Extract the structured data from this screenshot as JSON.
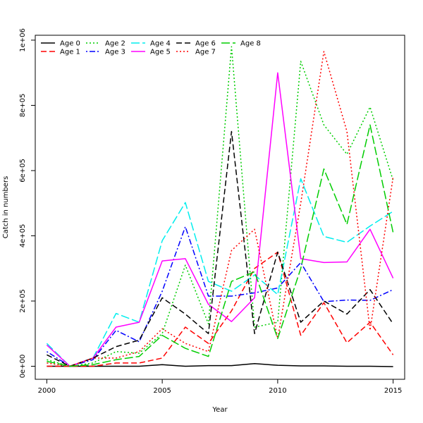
{
  "chart_data": {
    "type": "line",
    "title": "",
    "xlabel": "Year",
    "ylabel": "Catch in numbers",
    "xlim": [
      1999.5,
      2015.5
    ],
    "ylim": [
      -40000,
      1015000
    ],
    "x_ticks": [
      2000,
      2005,
      2010,
      2015
    ],
    "x_tick_labels": [
      "2000",
      "2005",
      "2010",
      "2015"
    ],
    "y_ticks": [
      0,
      200000,
      400000,
      600000,
      800000,
      1000000
    ],
    "y_tick_labels": [
      "0e+00",
      "2e+05",
      "4e+05",
      "6e+05",
      "8e+05",
      "1e+06"
    ],
    "grid": false,
    "legend_position": "top-left",
    "x": [
      2000,
      2001,
      2002,
      2003,
      2004,
      2005,
      2006,
      2007,
      2008,
      2009,
      2010,
      2011,
      2012,
      2013,
      2014,
      2015
    ],
    "series": [
      {
        "name": "Age 0",
        "color": "#000000",
        "dash": "solid",
        "values": [
          0,
          0,
          0,
          0,
          0,
          5000,
          0,
          2000,
          2000,
          8000,
          3000,
          1000,
          1000,
          0,
          0,
          -1000
        ]
      },
      {
        "name": "Age 1",
        "color": "#ff0000",
        "dash": "dashed",
        "values": [
          0,
          0,
          0,
          10000,
          10000,
          25000,
          120000,
          70000,
          170000,
          300000,
          350000,
          95000,
          195000,
          72000,
          135000,
          35000
        ]
      },
      {
        "name": "Age 2",
        "color": "#00cd00",
        "dash": "dotted",
        "values": [
          20000,
          0,
          10000,
          45000,
          40000,
          100000,
          310000,
          130000,
          980000,
          120000,
          135000,
          935000,
          740000,
          650000,
          795000,
          570000
        ]
      },
      {
        "name": "Age 3",
        "color": "#0000ff",
        "dash": "dotdash",
        "values": [
          45000,
          0,
          20000,
          110000,
          75000,
          230000,
          428000,
          215000,
          215000,
          225000,
          240000,
          318000,
          198000,
          203000,
          202000,
          235000
        ]
      },
      {
        "name": "Age 4",
        "color": "#00eeee",
        "dash": "longdash",
        "values": [
          70000,
          0,
          25000,
          162000,
          135000,
          385000,
          502000,
          260000,
          230000,
          280000,
          220000,
          575000,
          398000,
          380000,
          430000,
          475000
        ]
      },
      {
        "name": "Age 5",
        "color": "#ff00ff",
        "dash": "solid",
        "values": [
          65000,
          0,
          25000,
          120000,
          135000,
          323000,
          330000,
          190000,
          137000,
          210000,
          900000,
          330000,
          318000,
          320000,
          420000,
          270000
        ]
      },
      {
        "name": "Age 6",
        "color": "#000000",
        "dash": "dashed",
        "values": [
          35000,
          0,
          25000,
          60000,
          80000,
          210000,
          160000,
          100000,
          720000,
          100000,
          350000,
          135000,
          200000,
          160000,
          235000,
          130000
        ]
      },
      {
        "name": "Age 7",
        "color": "#ff0000",
        "dash": "dotted",
        "values": [
          10000,
          0,
          25000,
          25000,
          45000,
          115000,
          70000,
          45000,
          355000,
          420000,
          85000,
          500000,
          965000,
          720000,
          110000,
          580000
        ]
      },
      {
        "name": "Age 8",
        "color": "#00cd00",
        "dash": "longdash",
        "values": [
          15000,
          0,
          5000,
          20000,
          30000,
          95000,
          55000,
          30000,
          260000,
          290000,
          85000,
          300000,
          605000,
          435000,
          740000,
          410000
        ]
      }
    ]
  }
}
